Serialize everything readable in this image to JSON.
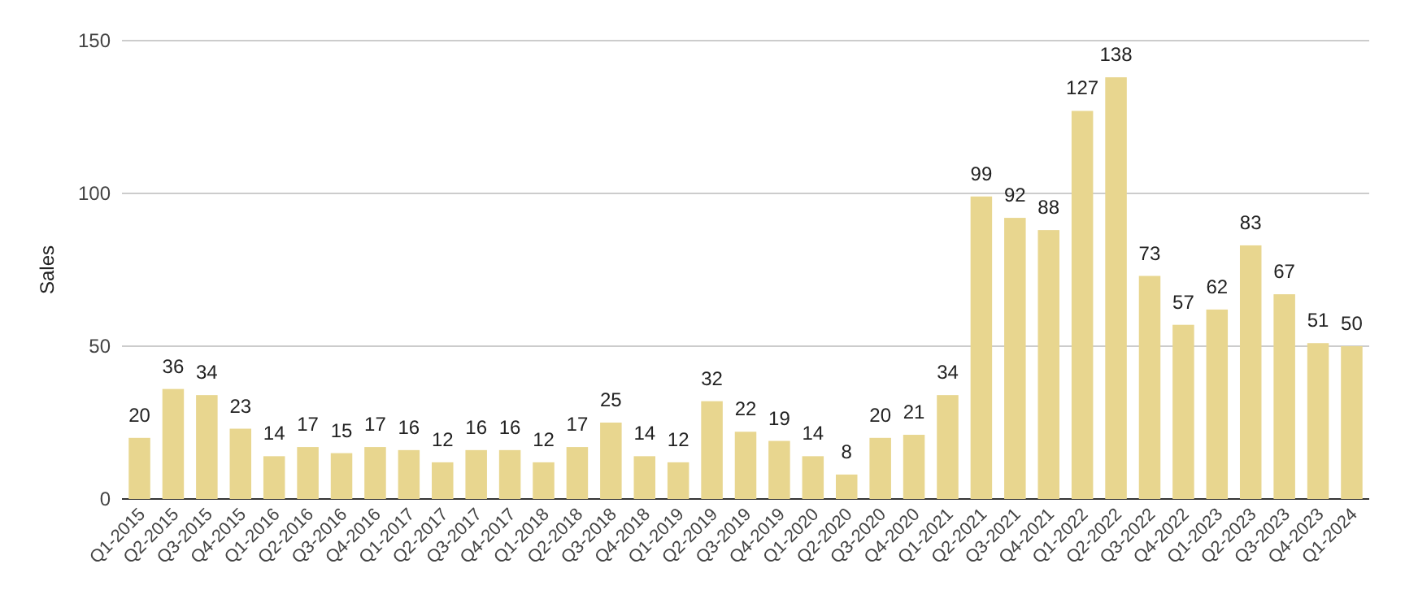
{
  "chart_data": {
    "type": "bar",
    "ylabel": "Sales",
    "categories": [
      "Q1-2015",
      "Q2-2015",
      "Q3-2015",
      "Q4-2015",
      "Q1-2016",
      "Q2-2016",
      "Q3-2016",
      "Q4-2016",
      "Q1-2017",
      "Q2-2017",
      "Q3-2017",
      "Q4-2017",
      "Q1-2018",
      "Q2-2018",
      "Q3-2018",
      "Q4-2018",
      "Q1-2019",
      "Q2-2019",
      "Q3-2019",
      "Q4-2019",
      "Q1-2020",
      "Q2-2020",
      "Q3-2020",
      "Q4-2020",
      "Q1-2021",
      "Q2-2021",
      "Q3-2021",
      "Q4-2021",
      "Q1-2022",
      "Q2-2022",
      "Q3-2022",
      "Q4-2022",
      "Q1-2023",
      "Q2-2023",
      "Q3-2023",
      "Q4-2023",
      "Q1-2024"
    ],
    "values": [
      20,
      36,
      34,
      23,
      14,
      17,
      15,
      17,
      16,
      12,
      16,
      16,
      12,
      17,
      25,
      14,
      12,
      32,
      22,
      19,
      14,
      8,
      20,
      21,
      34,
      99,
      92,
      88,
      127,
      138,
      73,
      57,
      62,
      83,
      67,
      51,
      50
    ],
    "color": "#e8d68f",
    "ylim": [
      0,
      150
    ],
    "yticks": [
      0,
      50,
      100,
      150
    ],
    "grid": "y",
    "data_labels": true
  }
}
